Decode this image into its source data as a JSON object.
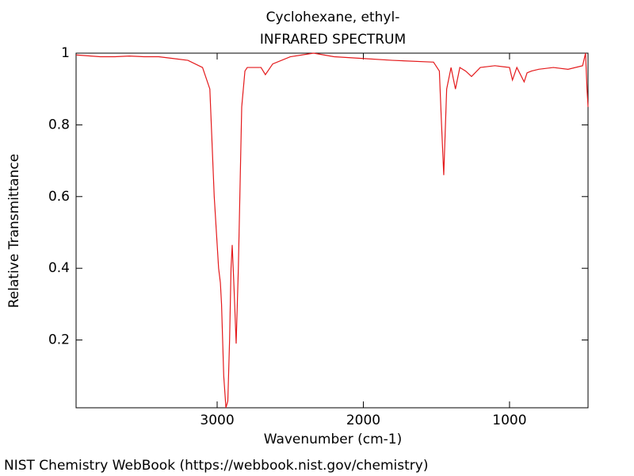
{
  "chart_data": {
    "type": "line",
    "title": "Cyclohexane, ethyl-",
    "subtitle": "INFRARED SPECTRUM",
    "x_label": "Wavenumber (cm-1)",
    "y_label": "Relative Transmittance",
    "footer": "NIST Chemistry WebBook (https://webbook.nist.gov/chemistry)",
    "color": "#e41a1c",
    "xlim": [
      3965,
      463
    ],
    "ylim": [
      0.011,
      1
    ],
    "xticks": [
      3000,
      2000,
      1000
    ],
    "yticks": [
      0.2,
      0.4,
      0.6,
      0.8,
      1
    ],
    "x": [
      3965,
      3900,
      3800,
      3700,
      3600,
      3500,
      3400,
      3300,
      3200,
      3100,
      3050,
      3020,
      2990,
      2978,
      2970,
      2955,
      2940,
      2927,
      2915,
      2905,
      2897,
      2885,
      2870,
      2855,
      2832,
      2810,
      2794,
      2700,
      2670,
      2620,
      2500,
      2340,
      2200,
      2000,
      1800,
      1520,
      1480,
      1465,
      1450,
      1430,
      1400,
      1370,
      1340,
      1300,
      1260,
      1200,
      1100,
      1000,
      980,
      950,
      900,
      880,
      850,
      800,
      700,
      600,
      500,
      480,
      470,
      463
    ],
    "values": [
      0.995,
      0.993,
      0.99,
      0.99,
      0.992,
      0.99,
      0.99,
      0.985,
      0.98,
      0.96,
      0.9,
      0.6,
      0.4,
      0.36,
      0.3,
      0.1,
      0.011,
      0.03,
      0.2,
      0.4,
      0.465,
      0.35,
      0.19,
      0.4,
      0.85,
      0.95,
      0.96,
      0.96,
      0.94,
      0.97,
      0.99,
      1.0,
      0.99,
      0.985,
      0.98,
      0.975,
      0.95,
      0.8,
      0.66,
      0.9,
      0.96,
      0.9,
      0.96,
      0.95,
      0.935,
      0.96,
      0.965,
      0.96,
      0.925,
      0.96,
      0.92,
      0.945,
      0.95,
      0.955,
      0.96,
      0.955,
      0.965,
      1.0,
      0.9,
      0.85
    ]
  }
}
